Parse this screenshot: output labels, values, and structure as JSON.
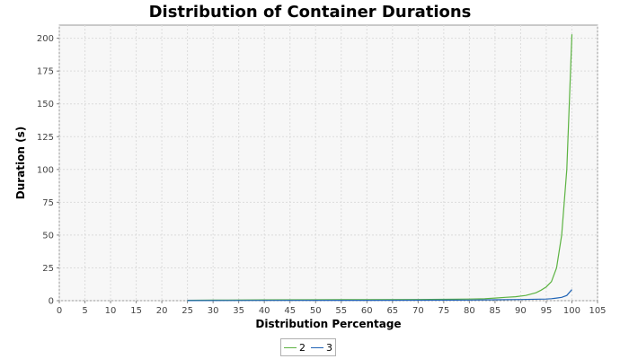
{
  "chart_data": {
    "type": "line",
    "title": "Distribution of Container Durations",
    "xlabel": "Distribution Percentage",
    "ylabel": "Duration (s)",
    "xlim": [
      0,
      105
    ],
    "ylim": [
      0,
      210
    ],
    "xticks": [
      0,
      5,
      10,
      15,
      20,
      25,
      30,
      35,
      40,
      45,
      50,
      55,
      60,
      65,
      70,
      75,
      80,
      85,
      90,
      95,
      100,
      105
    ],
    "yticks": [
      0,
      25,
      50,
      75,
      100,
      125,
      150,
      175,
      200
    ],
    "grid": true,
    "legend_position": "bottom",
    "series": [
      {
        "name": "2",
        "color": "#5cb342",
        "x": [
          25,
          30,
          40,
          50,
          60,
          70,
          75,
          80,
          83,
          85,
          87,
          89,
          91,
          93,
          94,
          95,
          96,
          97,
          98,
          99,
          100
        ],
        "y": [
          0.3,
          0.4,
          0.6,
          0.7,
          0.8,
          0.9,
          1.0,
          1.2,
          1.5,
          2.0,
          2.5,
          3.0,
          4.0,
          6.0,
          8.0,
          10.5,
          14.5,
          25,
          50,
          100,
          203
        ]
      },
      {
        "name": "3",
        "color": "#1f63b5",
        "x": [
          25,
          40,
          60,
          75,
          80,
          85,
          90,
          95,
          96,
          97,
          98,
          99,
          100
        ],
        "y": [
          0.1,
          0.2,
          0.3,
          0.4,
          0.5,
          0.7,
          0.9,
          1.2,
          1.5,
          2.0,
          2.5,
          4.0,
          8.5
        ]
      }
    ]
  }
}
